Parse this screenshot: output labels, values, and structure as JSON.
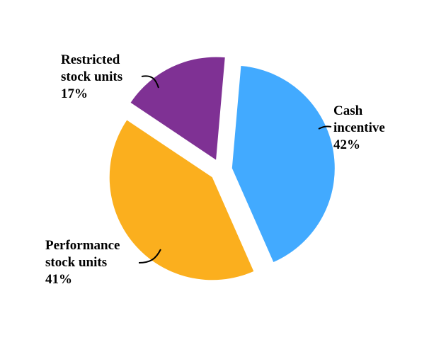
{
  "chart_data": {
    "type": "pie",
    "title": "",
    "slices": [
      {
        "label_lines": [
          "Cash",
          "incentive"
        ],
        "value": 42,
        "value_label": "42%",
        "color": "#42AAFF"
      },
      {
        "label_lines": [
          "Performance",
          "stock units"
        ],
        "value": 41,
        "value_label": "41%",
        "color": "#FBAF1E"
      },
      {
        "label_lines": [
          "Restricted",
          "stock units"
        ],
        "value": 17,
        "value_label": "17%",
        "color": "#7F3194"
      }
    ],
    "exploded": true,
    "legend": "none"
  }
}
